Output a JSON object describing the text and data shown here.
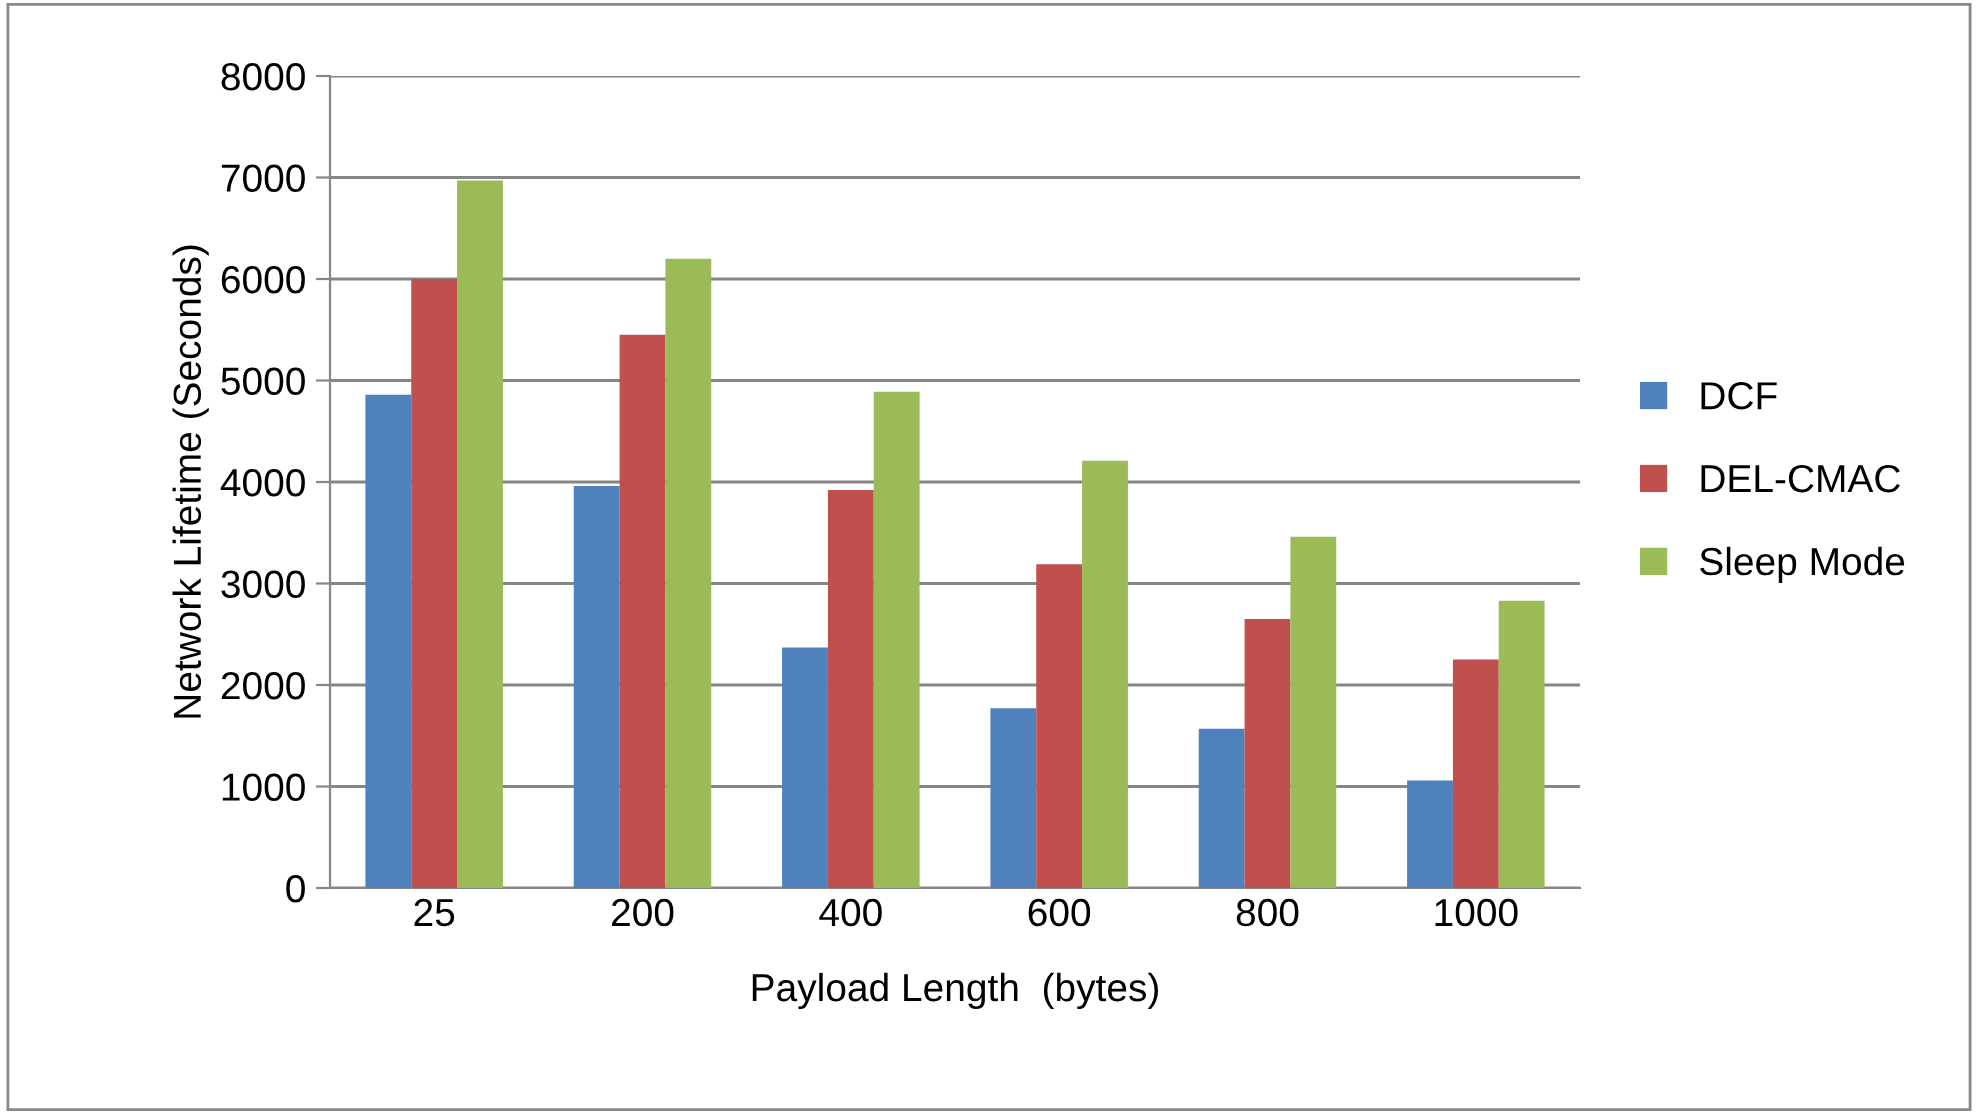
{
  "chart_data": {
    "type": "bar",
    "xlabel": "Payload Length  (bytes)",
    "ylabel": "Network Lifetime (Seconds)",
    "categories": [
      "25",
      "200",
      "400",
      "600",
      "800",
      "1000"
    ],
    "series": [
      {
        "name": "DCF",
        "color": "#4f81bd",
        "values": [
          4860,
          3960,
          2370,
          1770,
          1570,
          1060
        ]
      },
      {
        "name": "DEL-CMAC",
        "color": "#c0504d",
        "values": [
          6000,
          5450,
          3920,
          3190,
          2650,
          2250
        ]
      },
      {
        "name": "Sleep Mode",
        "color": "#9bbb59",
        "values": [
          6970,
          6200,
          4890,
          4210,
          3460,
          2830
        ]
      }
    ],
    "ylim": [
      0,
      8000
    ],
    "yticks": [
      0,
      1000,
      2000,
      3000,
      4000,
      5000,
      6000,
      7000,
      8000
    ],
    "grid": "y",
    "legend": "right"
  }
}
